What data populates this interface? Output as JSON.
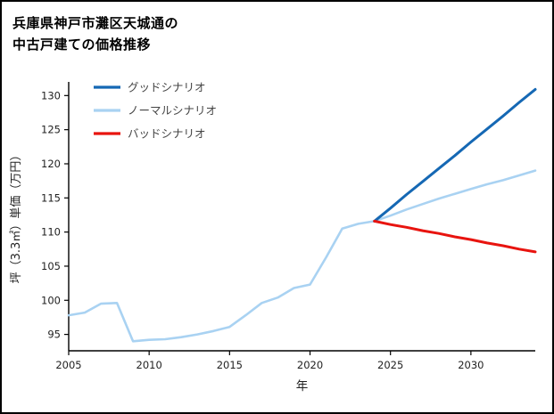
{
  "title": {
    "line1": "兵庫県神戸市灘区天城通の",
    "line2": "中古戸建ての価格推移"
  },
  "chart_data": {
    "type": "line",
    "title": "兵庫県神戸市灘区天城通の中古戸建ての価格推移",
    "xlabel": "年",
    "ylabel": "坪（3.3㎡）単価（万円）",
    "xlim": [
      2005,
      2034
    ],
    "ylim": [
      92.6,
      132
    ],
    "xticks": [
      2005,
      2010,
      2015,
      2020,
      2025,
      2030
    ],
    "yticks": [
      95,
      100,
      105,
      110,
      115,
      120,
      125,
      130
    ],
    "grid": false,
    "legend_position": "top-left",
    "axis_color": "#000000",
    "tick_label_color": "#222222",
    "legend_text_color": "#444444",
    "series": [
      {
        "name": "グッドシナリオ",
        "color": "#1568b4",
        "width": 3,
        "x": [
          2024,
          2025,
          2026,
          2027,
          2028,
          2029,
          2030,
          2031,
          2032,
          2033,
          2034
        ],
        "values": [
          111.6,
          113.5,
          115.5,
          117.4,
          119.3,
          121.2,
          123.2,
          125.1,
          127.0,
          129.0,
          130.9
        ]
      },
      {
        "name": "ノーマルシナリオ",
        "color": "#a9d2f2",
        "width": 2.6,
        "x": [
          2005,
          2006,
          2007,
          2008,
          2009,
          2010,
          2011,
          2012,
          2013,
          2014,
          2015,
          2016,
          2017,
          2018,
          2019,
          2020,
          2021,
          2022,
          2023,
          2024,
          2025,
          2026,
          2027,
          2028,
          2029,
          2030,
          2031,
          2032,
          2033,
          2034
        ],
        "values": [
          97.8,
          98.2,
          99.5,
          99.6,
          94.0,
          94.2,
          94.3,
          94.6,
          95.0,
          95.5,
          96.1,
          97.8,
          99.6,
          100.4,
          101.8,
          102.3,
          106.3,
          110.5,
          111.2,
          111.6,
          112.4,
          113.3,
          114.1,
          114.9,
          115.6,
          116.3,
          117.0,
          117.6,
          118.3,
          119.0
        ]
      },
      {
        "name": "バッドシナリオ",
        "color": "#e8140f",
        "width": 3,
        "x": [
          2024,
          2025,
          2026,
          2027,
          2028,
          2029,
          2030,
          2031,
          2032,
          2033,
          2034
        ],
        "values": [
          111.6,
          111.1,
          110.7,
          110.2,
          109.8,
          109.3,
          108.9,
          108.4,
          108.0,
          107.5,
          107.1
        ]
      }
    ]
  }
}
